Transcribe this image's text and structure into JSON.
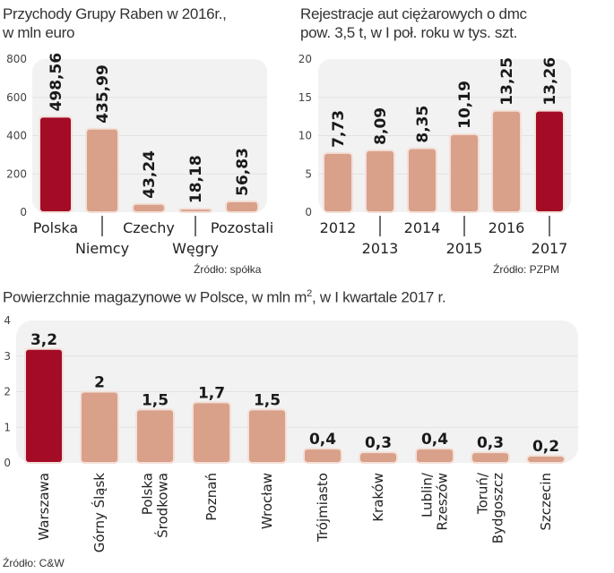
{
  "colors": {
    "highlight": "#a30b27",
    "bar": "#d9a08a",
    "bar_stroke": "#f3e0d8",
    "plot_bg": "#f2f2f2",
    "grid": "#e2e2e2"
  },
  "chart_data": [
    {
      "type": "bar",
      "title": "Przychody Grupy Raben w 2016r., w mln euro",
      "title_line1": "Przychody Grupy Raben w 2016r.,",
      "title_line2": "w mln euro",
      "categories": [
        "Polska",
        "Niemcy",
        "Czechy",
        "Węgry",
        "Pozostali"
      ],
      "values": [
        498.56,
        435.99,
        43.24,
        18.18,
        56.83
      ],
      "value_labels": [
        "498,56",
        "435,99",
        "43,24",
        "18,18",
        "56,83"
      ],
      "highlight_index": 0,
      "ylim": [
        0,
        800
      ],
      "yticks": [
        0,
        200,
        400,
        600,
        800
      ],
      "ytick_labels": [
        "0",
        "200",
        "400",
        "600",
        "800"
      ],
      "grid": true,
      "xlabel": "",
      "ylabel": "",
      "source": "Źródło:  spółka"
    },
    {
      "type": "bar",
      "title": "Rejestracje aut ciężarowych o dmc pow. 3,5 t, w I poł. roku w tys. szt.",
      "title_line1": "Rejestracje aut ciężarowych o dmc",
      "title_line2": "pow. 3,5 t, w I poł. roku w tys. szt.",
      "categories": [
        "2012",
        "2013",
        "2014",
        "2015",
        "2016",
        "2017"
      ],
      "values": [
        7.73,
        8.09,
        8.35,
        10.19,
        13.25,
        13.26
      ],
      "value_labels": [
        "7,73",
        "8,09",
        "8,35",
        "10,19",
        "13,25",
        "13,26"
      ],
      "highlight_index": 5,
      "ylim": [
        0,
        20
      ],
      "yticks": [
        0,
        5,
        10,
        15,
        20
      ],
      "ytick_labels": [
        "0",
        "5",
        "10",
        "15",
        "20"
      ],
      "grid": true,
      "xlabel": "",
      "ylabel": "",
      "source": "Źródło: PZPM"
    },
    {
      "type": "bar",
      "title": "Powierzchnie magazynowe w Polsce, w mln m2, w I kwartale 2017 r.",
      "title_before_sup": "Powierzchnie magazynowe w Polsce, w mln m",
      "title_sup": "2",
      "title_after_sup": ", w I kwartale 2017 r.",
      "categories": [
        "Warszawa",
        "Górny Śląsk",
        "Polska Środkowa",
        "Poznań",
        "Wrocław",
        "Trójmiasto",
        "Kraków",
        "Lublin/ Rzeszów",
        "Toruń/ Bydgoszcz",
        "Szczecin"
      ],
      "category_lines": [
        [
          "Warszawa"
        ],
        [
          "Górny Śląsk"
        ],
        [
          "Polska",
          "Środkowa"
        ],
        [
          "Poznań"
        ],
        [
          "Wrocław"
        ],
        [
          "Trójmiasto"
        ],
        [
          "Kraków"
        ],
        [
          "Lublin/",
          "Rzeszów"
        ],
        [
          "Toruń/",
          "Bydgoszcz"
        ],
        [
          "Szczecin"
        ]
      ],
      "values": [
        3.2,
        2,
        1.5,
        1.7,
        1.5,
        0.4,
        0.3,
        0.4,
        0.3,
        0.2
      ],
      "value_labels": [
        "3,2",
        "2",
        "1,5",
        "1,7",
        "1,5",
        "0,4",
        "0,3",
        "0,4",
        "0,3",
        "0,2"
      ],
      "highlight_index": 0,
      "ylim": [
        0,
        4
      ],
      "yticks": [
        0,
        1,
        2,
        3,
        4
      ],
      "ytick_labels": [
        "0",
        "1",
        "2",
        "3",
        "4"
      ],
      "grid": true,
      "xlabel": "",
      "ylabel": "",
      "source": "Źródło: C&W"
    }
  ]
}
